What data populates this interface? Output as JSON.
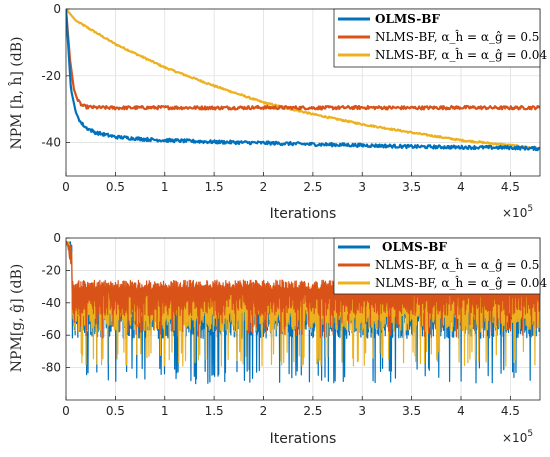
{
  "chart_data": [
    {
      "type": "line",
      "xlabel": "Iterations",
      "ylabel": "NPM [h, ĥ] (dB)",
      "x_exponent_label": "×10",
      "x_exponent": "5",
      "xlim": [
        0,
        4.8
      ],
      "ylim": [
        -50,
        0
      ],
      "xticks": [
        "0",
        "0.5",
        "1",
        "1.5",
        "2",
        "2.5",
        "3",
        "3.5",
        "4",
        "4.5"
      ],
      "yticks": [
        "0",
        "-20",
        "-40"
      ],
      "grid": true,
      "legend_position": "top-right",
      "series": [
        {
          "name": "OLMS-BF",
          "color": "#0072BD",
          "x": [
            0,
            0.05,
            0.1,
            0.15,
            0.2,
            0.3,
            0.5,
            0.8,
            1.0,
            1.5,
            2.0,
            2.5,
            3.0,
            3.5,
            4.0,
            4.5,
            4.8
          ],
          "y": [
            0,
            -24,
            -31,
            -34,
            -35.5,
            -37,
            -38.3,
            -39,
            -39.3,
            -39.8,
            -40.1,
            -40.5,
            -40.8,
            -41.2,
            -41.4,
            -41.5,
            -41.8
          ]
        },
        {
          "name": "NLMS-BF, α_ĥ = α_ĝ = 0.5",
          "color": "#D95319",
          "x": [
            0,
            0.04,
            0.08,
            0.12,
            0.16,
            0.2,
            0.3,
            0.5,
            1.0,
            1.5,
            2.0,
            2.5,
            3.0,
            3.5,
            4.0,
            4.5,
            4.8
          ],
          "y": [
            0,
            -15,
            -24,
            -27.5,
            -28.8,
            -29.3,
            -29.5,
            -29.6,
            -29.5,
            -29.6,
            -29.5,
            -29.6,
            -29.5,
            -29.6,
            -29.5,
            -29.6,
            -29.5
          ]
        },
        {
          "name": "NLMS-BF, α_ĥ = α_ĝ = 0.04",
          "color": "#EDB120",
          "x": [
            0,
            0.1,
            0.5,
            1.0,
            1.5,
            2.0,
            2.5,
            3.0,
            3.5,
            4.0,
            4.5,
            4.8
          ],
          "y": [
            0,
            -3.5,
            -10.5,
            -17.5,
            -23,
            -28,
            -31.5,
            -34.5,
            -37,
            -39.3,
            -40.8,
            -41.8
          ]
        }
      ]
    },
    {
      "type": "line",
      "xlabel": "Iterations",
      "ylabel": "NPM[g, ĝ] (dB)",
      "x_exponent_label": "×10",
      "x_exponent": "5",
      "xlim": [
        0,
        4.8
      ],
      "ylim": [
        -100,
        0
      ],
      "xticks": [
        "0",
        "0.5",
        "1",
        "1.5",
        "2",
        "2.5",
        "3",
        "3.5",
        "4",
        "4.5"
      ],
      "yticks": [
        "0",
        "-20",
        "-40",
        "-60",
        "-80"
      ],
      "grid": true,
      "legend_position": "top-right",
      "series": [
        {
          "name": "OLMS-BF",
          "color": "#0072BD",
          "upper": -32,
          "typical_low": -62,
          "deep_low": -90
        },
        {
          "name": "NLMS-BF, α_ĥ = α_ĝ = 0.5",
          "color": "#D95319",
          "upper": -26,
          "typical_low": -48,
          "deep_low": -62
        },
        {
          "name": "NLMS-BF, α_ĥ = α_ĝ = 0.04",
          "color": "#EDB120",
          "upper": -30,
          "typical_low": -58,
          "deep_low": -80
        }
      ]
    }
  ]
}
